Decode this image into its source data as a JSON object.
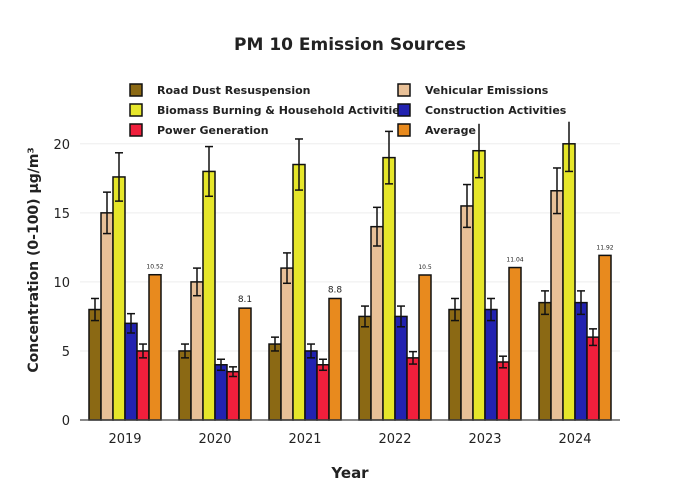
{
  "chart_data": {
    "type": "bar",
    "title": "PM 10 Emission Sources",
    "xlabel": "Year",
    "ylabel": "Concentration (0-100) μg/m³",
    "categories": [
      "2019",
      "2020",
      "2021",
      "2022",
      "2023",
      "2024"
    ],
    "ylim": [
      0,
      21
    ],
    "yticks": [
      0,
      5,
      10,
      15,
      20
    ],
    "grid": true,
    "legend_position": "top",
    "series": [
      {
        "name": "Road Dust Resuspension",
        "color": "#8b6914",
        "values": [
          8.0,
          5.0,
          5.5,
          7.5,
          8.0,
          8.5
        ],
        "errors": [
          0.8,
          0.5,
          0.5,
          0.75,
          0.8,
          0.85
        ]
      },
      {
        "name": "Vehicular Emissions",
        "color": "#e8c097",
        "values": [
          15.0,
          10.0,
          11.0,
          14.0,
          15.5,
          16.6
        ],
        "errors": [
          1.5,
          1.0,
          1.1,
          1.4,
          1.55,
          1.65
        ]
      },
      {
        "name": "Biomass Burning & Household Activities",
        "color": "#e6e62a",
        "values": [
          17.6,
          18.0,
          18.5,
          19.0,
          19.5,
          20.0
        ],
        "errors": [
          1.75,
          1.8,
          1.85,
          1.9,
          1.95,
          2.0
        ]
      },
      {
        "name": "Construction Activities",
        "color": "#2222b0",
        "values": [
          7.0,
          4.0,
          5.0,
          7.5,
          8.0,
          8.5
        ],
        "errors": [
          0.7,
          0.4,
          0.5,
          0.75,
          0.8,
          0.85
        ]
      },
      {
        "name": "Power Generation",
        "color": "#f01f3c",
        "values": [
          5.0,
          3.5,
          4.0,
          4.5,
          4.2,
          6.0
        ],
        "errors": [
          0.5,
          0.35,
          0.4,
          0.45,
          0.42,
          0.6
        ]
      },
      {
        "name": "Average",
        "color": "#e88a1e",
        "values": [
          10.52,
          8.1,
          8.8,
          10.5,
          11.04,
          11.92
        ],
        "errors": null,
        "labels": [
          "10.52",
          "8.1",
          "8.8",
          "10.5",
          "11.04",
          "11.92"
        ]
      }
    ]
  }
}
